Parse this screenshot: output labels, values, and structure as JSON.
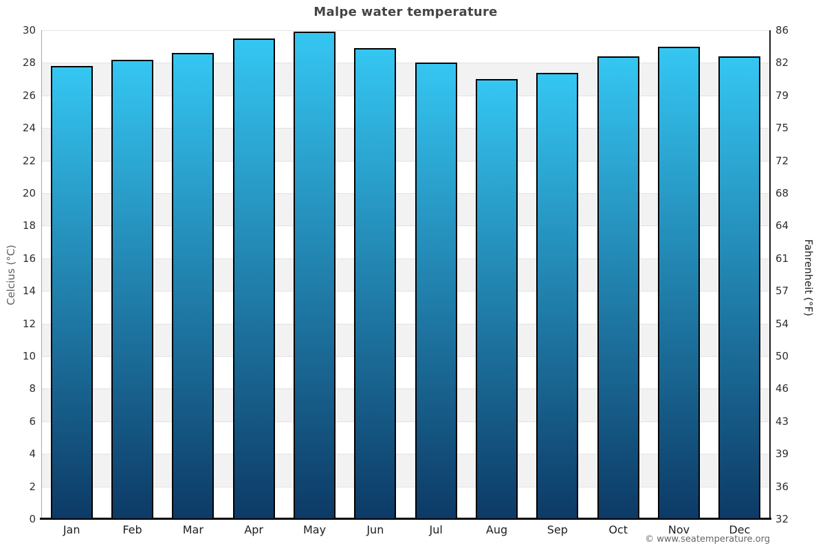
{
  "chart": {
    "title": "Malpe water temperature",
    "ylabel_left": "Celcius (°C)",
    "ylabel_right": "Fahrenheit (°F)",
    "footer": "© www.seatemperature.org"
  },
  "chart_data": {
    "type": "bar",
    "title": "Malpe water temperature",
    "categories": [
      "Jan",
      "Feb",
      "Mar",
      "Apr",
      "May",
      "Jun",
      "Jul",
      "Aug",
      "Sep",
      "Oct",
      "Nov",
      "Dec"
    ],
    "values": [
      27.8,
      28.2,
      28.6,
      29.5,
      29.9,
      28.9,
      28.0,
      27.0,
      27.4,
      28.4,
      29.0,
      28.4
    ],
    "unit": "°C",
    "xlabel": "",
    "ylabel": "Celcius (°C)",
    "ylabel_secondary": "Fahrenheit (°F)",
    "ylim": [
      0,
      30
    ],
    "celsius_ticks": [
      0,
      2,
      4,
      6,
      8,
      10,
      12,
      14,
      16,
      18,
      20,
      22,
      24,
      26,
      28,
      30
    ],
    "fahrenheit_tick_labels": [
      "32",
      "36",
      "39",
      "43",
      "46",
      "50",
      "54",
      "57",
      "61",
      "64",
      "68",
      "72",
      "75",
      "79",
      "82",
      "86"
    ],
    "grid": true,
    "band_step": 2,
    "legend": null,
    "annotation": "© www.seatemperature.org"
  },
  "colors": {
    "bar_gradient_top": "#35c6f2",
    "bar_gradient_bottom": "#0d3a66",
    "bar_border": "#000000",
    "stripe_gray": "#f2f2f2",
    "stripe_white": "#ffffff",
    "gridline": "#e2e2e2",
    "axis_left": "#a6a6a6",
    "axis_right": "#1a1a1a",
    "axis_bottom": "#000000",
    "title_text": "#444444",
    "tick_text": "#2e2e2e",
    "footer_text": "#666666"
  }
}
